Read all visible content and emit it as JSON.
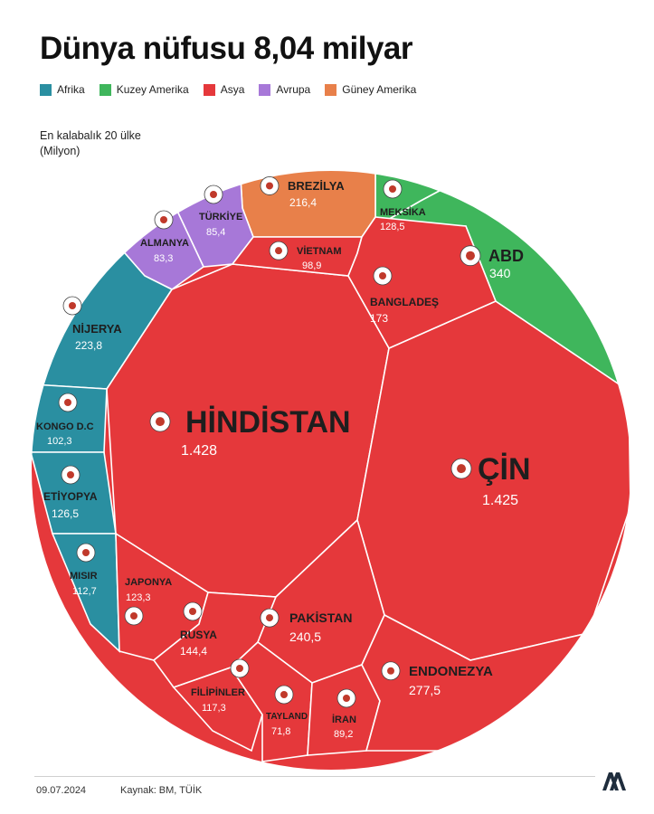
{
  "title": "Dünya nüfusu 8,04 milyar",
  "subtitle_line1": "En kalabalık 20 ülke",
  "subtitle_line2": "(Milyon)",
  "legend": [
    {
      "label": "Afrika",
      "color": "#2a8fa1"
    },
    {
      "label": "Kuzey Amerika",
      "color": "#3fb65c"
    },
    {
      "label": "Asya",
      "color": "#e5383b"
    },
    {
      "label": "Avrupa",
      "color": "#a778d8"
    },
    {
      "label": "Güney Amerika",
      "color": "#e8804a"
    }
  ],
  "footer": {
    "date": "09.07.2024",
    "source": "Kaynak: BM, TÜİK"
  },
  "chart_data": {
    "type": "voronoi-treemap",
    "title": "Dünya nüfusu 8,04 milyar",
    "unit": "Milyon",
    "regions": [
      "Afrika",
      "Kuzey Amerika",
      "Asya",
      "Avrupa",
      "Güney Amerika"
    ],
    "items": [
      {
        "name": "HİNDİSTAN",
        "value": 1428,
        "label": "1.428",
        "region": "Asya"
      },
      {
        "name": "ÇİN",
        "value": 1425,
        "label": "1.425",
        "region": "Asya"
      },
      {
        "name": "ABD",
        "value": 340,
        "label": "340",
        "region": "Kuzey Amerika"
      },
      {
        "name": "ENDONEZYA",
        "value": 277.5,
        "label": "277,5",
        "region": "Asya"
      },
      {
        "name": "PAKİSTAN",
        "value": 240.5,
        "label": "240,5",
        "region": "Asya"
      },
      {
        "name": "NİJERYA",
        "value": 223.8,
        "label": "223,8",
        "region": "Afrika"
      },
      {
        "name": "BREZİLYA",
        "value": 216.4,
        "label": "216,4",
        "region": "Güney Amerika"
      },
      {
        "name": "BANGLADEŞ",
        "value": 173,
        "label": "173",
        "region": "Asya"
      },
      {
        "name": "RUSYA",
        "value": 144.4,
        "label": "144,4",
        "region": "Asya"
      },
      {
        "name": "MEKSİKA",
        "value": 128.5,
        "label": "128,5",
        "region": "Kuzey Amerika"
      },
      {
        "name": "ETİYOPYA",
        "value": 126.5,
        "label": "126,5",
        "region": "Afrika"
      },
      {
        "name": "JAPONYA",
        "value": 123.3,
        "label": "123,3",
        "region": "Asya"
      },
      {
        "name": "FİLİPİNLER",
        "value": 117.3,
        "label": "117,3",
        "region": "Asya"
      },
      {
        "name": "MISIR",
        "value": 112.7,
        "label": "112,7",
        "region": "Afrika"
      },
      {
        "name": "KONGO D.C",
        "value": 102.3,
        "label": "102,3",
        "region": "Afrika"
      },
      {
        "name": "VİETNAM",
        "value": 98.9,
        "label": "98,9",
        "region": "Asya"
      },
      {
        "name": "İRAN",
        "value": 89.2,
        "label": "89,2",
        "region": "Asya"
      },
      {
        "name": "TÜRKİYE",
        "value": 85.4,
        "label": "85,4",
        "region": "Avrupa"
      },
      {
        "name": "ALMANYA",
        "value": 83.3,
        "label": "83,3",
        "region": "Avrupa"
      },
      {
        "name": "TAYLAND",
        "value": 71.8,
        "label": "71,8",
        "region": "Asya"
      }
    ]
  }
}
